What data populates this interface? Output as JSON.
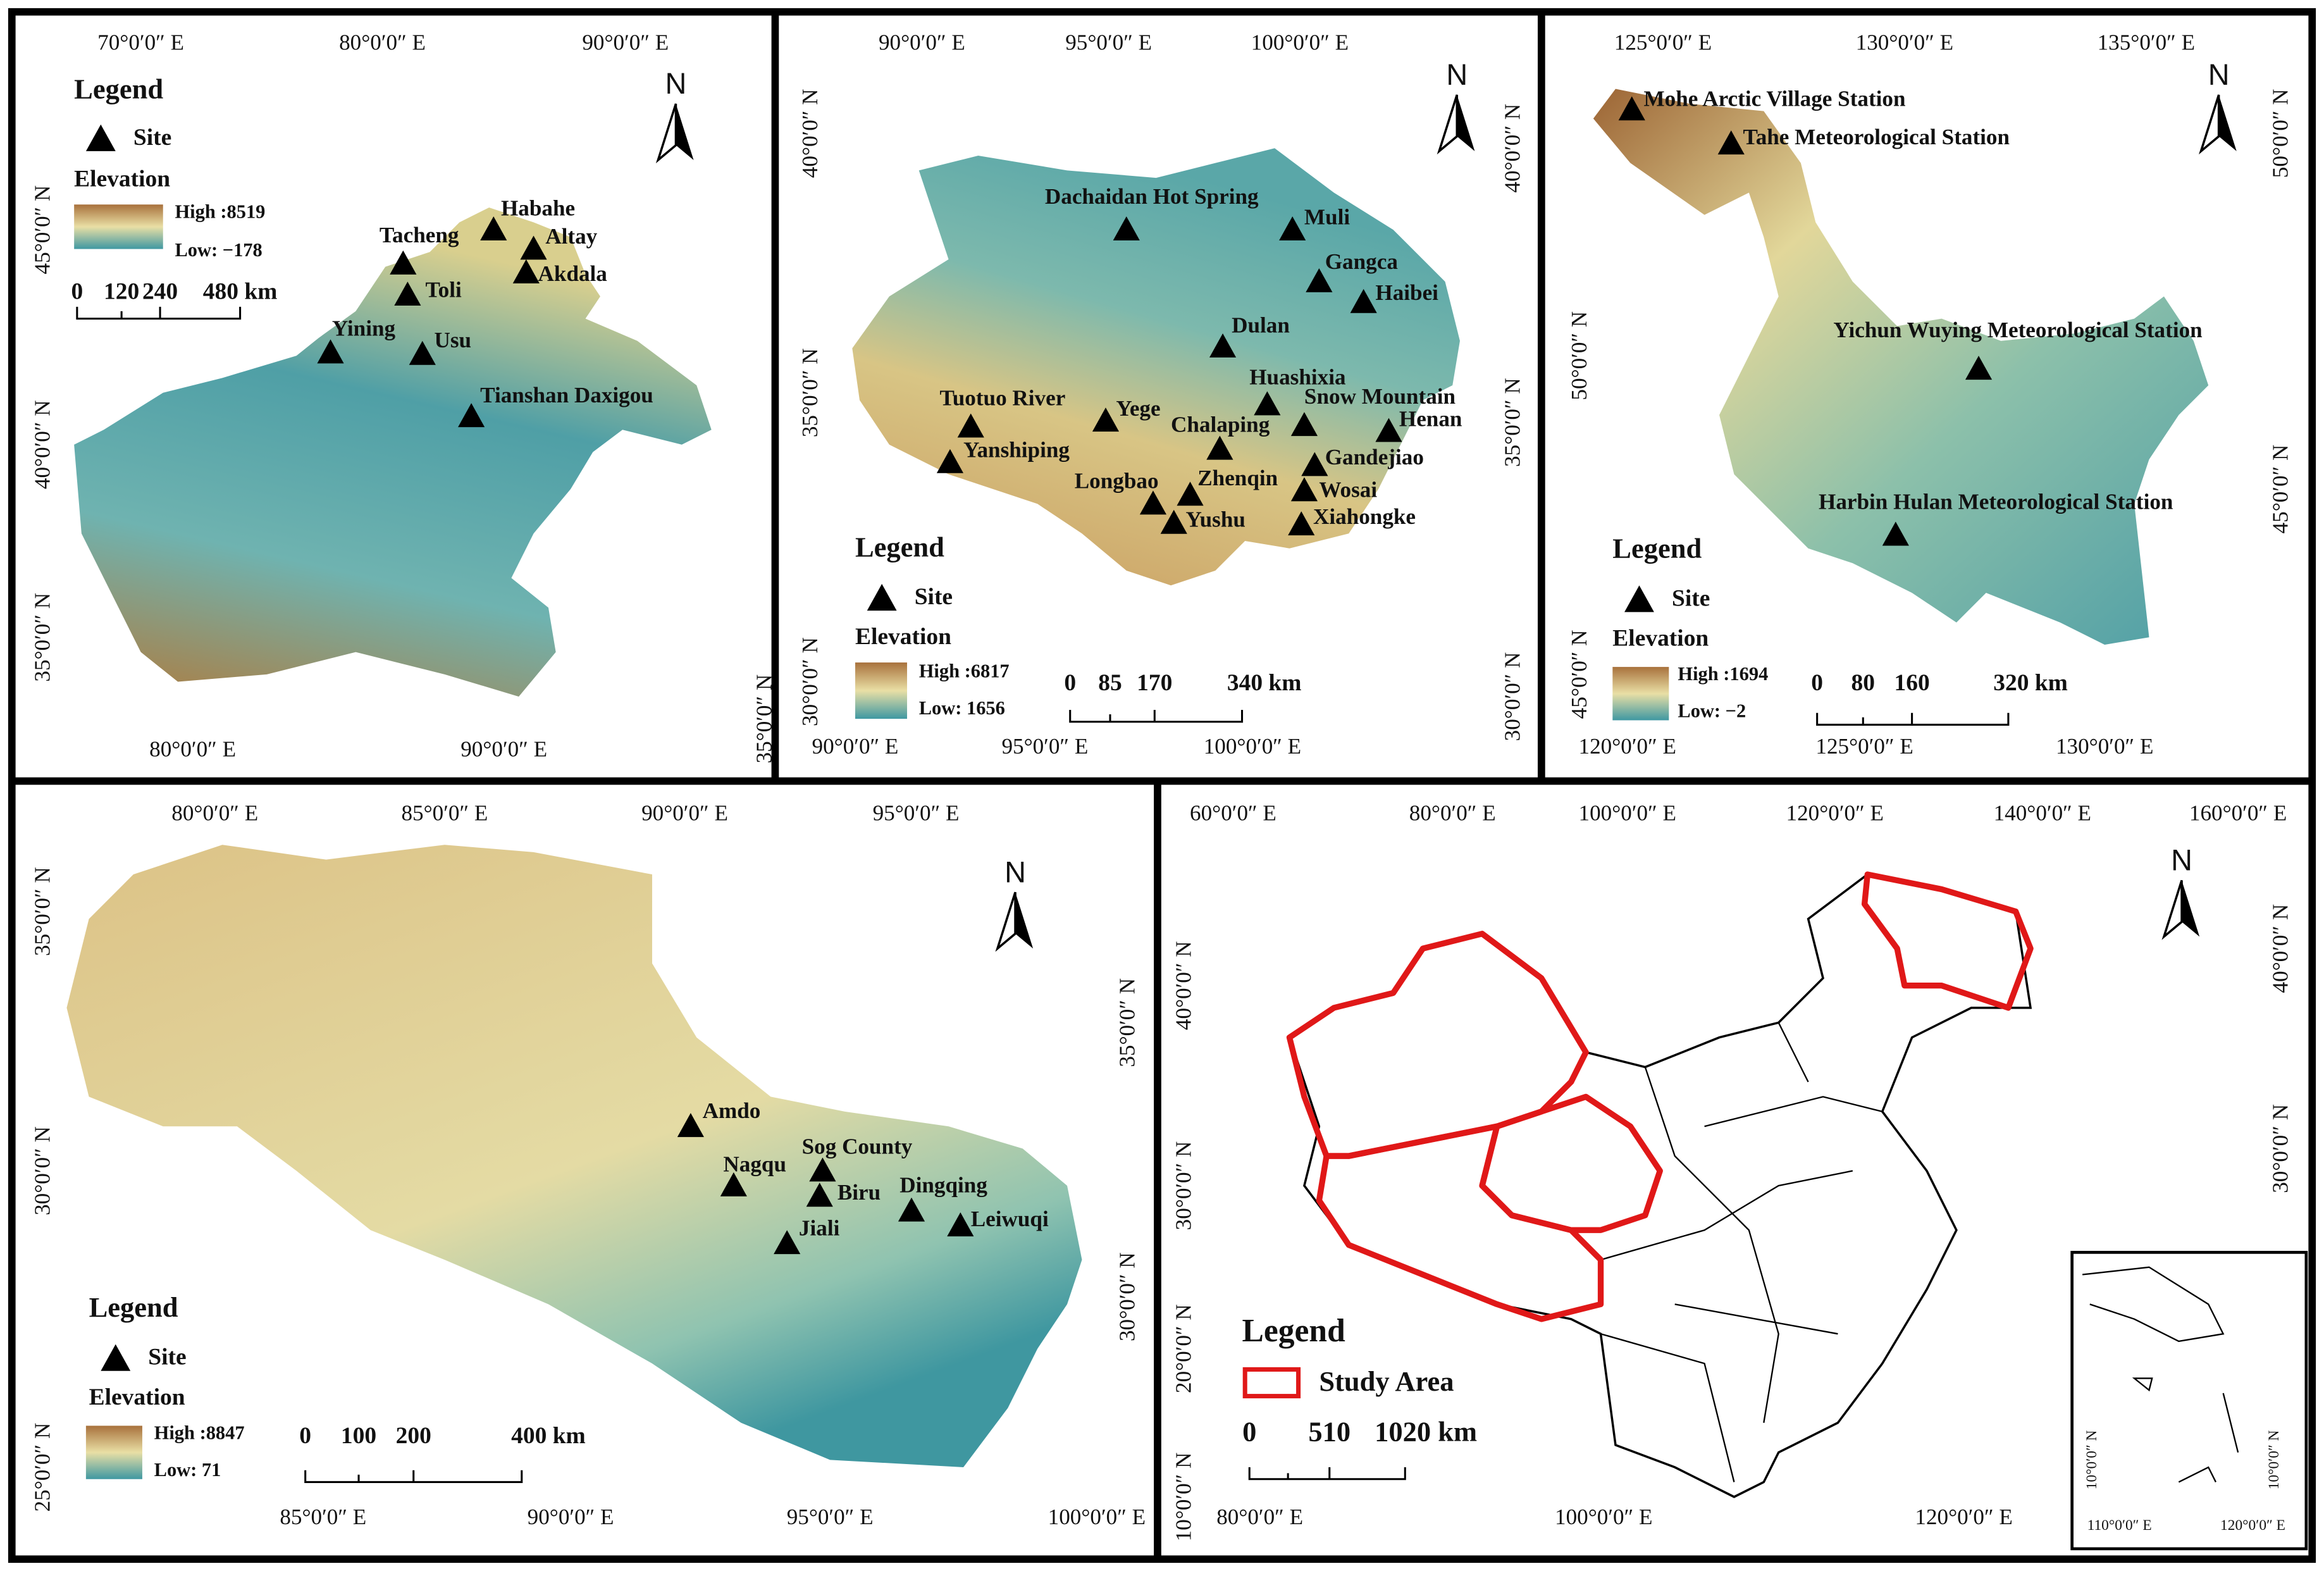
{
  "panels": [
    {
      "top_labels": [
        "70°0′0″ E",
        "80°0′0″ E",
        "90°0′0″ E"
      ],
      "bottom_labels": [
        "80°0′0″ E",
        "90°0′0″ E"
      ],
      "left_labels": [
        "45°0′0″ N",
        "40°0′0″ N",
        "35°0′0″ N"
      ],
      "right_labels": [
        "35°0′0″ N"
      ],
      "north": "N",
      "sites": [
        "Habahe",
        "Altay",
        "Akdala",
        "Tacheng",
        "Toli",
        "Yining",
        "Usu",
        "Tianshan Daxigou"
      ],
      "legend": {
        "title": "Legend",
        "site": "Site",
        "elevation": "Elevation",
        "high": "High :8519",
        "low": "Low: −178",
        "scale": [
          "0",
          "120",
          "240",
          "480 km"
        ]
      }
    },
    {
      "top_labels": [
        "90°0′0″ E",
        "95°0′0″ E",
        "100°0′0″ E"
      ],
      "bottom_labels": [
        "90°0′0″ E",
        "95°0′0″ E",
        "100°0′0″ E"
      ],
      "left_labels": [
        "40°0′0″ N",
        "35°0′0″ N",
        "30°0′0″ N"
      ],
      "right_labels": [
        "40°0′0″ N",
        "35°0′0″ N",
        "30°0′0″ N"
      ],
      "north": "N",
      "sites": [
        "Dachaidan Hot Spring",
        "Muli",
        "Gangca",
        "Haibei",
        "Dulan",
        "Huashixia",
        "Snow Mountain",
        "Henan",
        "Tuotuo River",
        "Yege",
        "Chalaping",
        "Yanshiping",
        "Gandejiao",
        "Zhenqin",
        "Longbao",
        "Wosai",
        "Yushu",
        "Xiahongke"
      ],
      "legend": {
        "title": "Legend",
        "site": "Site",
        "elevation": "Elevation",
        "high": "High :6817",
        "low": "Low: 1656",
        "scale": [
          "0",
          "85",
          "170",
          "340 km"
        ]
      }
    },
    {
      "top_labels": [
        "125°0′0″ E",
        "130°0′0″ E",
        "135°0′0″ E"
      ],
      "bottom_labels": [
        "120°0′0″ E",
        "125°0′0″ E",
        "130°0′0″ E"
      ],
      "left_labels": [
        "50°0′0″ N",
        "45°0′0″ N"
      ],
      "right_labels": [
        "50°0′0″ N",
        "45°0′0″ N"
      ],
      "north": "N",
      "sites": [
        "Mohe Arctic Village Station",
        "Tahe Meteorological Station",
        "Yichun Wuying Meteorological Station",
        "Harbin Hulan Meteorological Station"
      ],
      "legend": {
        "title": "Legend",
        "site": "Site",
        "elevation": "Elevation",
        "high": "High :1694",
        "low": "Low: −2",
        "scale": [
          "0",
          "80",
          "160",
          "320 km"
        ]
      }
    },
    {
      "top_labels": [
        "80°0′0″ E",
        "85°0′0″ E",
        "90°0′0″ E",
        "95°0′0″ E"
      ],
      "bottom_labels": [
        "85°0′0″ E",
        "90°0′0″ E",
        "95°0′0″ E",
        "100°0′0″ E"
      ],
      "left_labels": [
        "35°0′0″ N",
        "30°0′0″ N",
        "25°0′0″ N"
      ],
      "right_labels": [
        "35°0′0″ N",
        "30°0′0″ N"
      ],
      "north": "N",
      "sites": [
        "Amdo",
        "Nagqu",
        "Sog County",
        "Biru",
        "Dingqing",
        "Leiwuqi",
        "Jiali"
      ],
      "legend": {
        "title": "Legend",
        "site": "Site",
        "elevation": "Elevation",
        "high": "High :8847",
        "low": "Low: 71",
        "scale": [
          "0",
          "100",
          "200",
          "400 km"
        ]
      }
    },
    {
      "top_labels": [
        "60°0′0″ E",
        "80°0′0″ E",
        "100°0′0″ E",
        "120°0′0″ E",
        "140°0′0″ E",
        "160°0′0″ E"
      ],
      "bottom_labels": [
        "80°0′0″ E",
        "100°0′0″ E",
        "120°0′0″ E"
      ],
      "left_labels": [
        "40°0′0″ N",
        "30°0′0″ N",
        "20°0′0″ N",
        "10°0′0″ N"
      ],
      "right_labels": [
        "40°0′0″ N",
        "30°0′0″ N"
      ],
      "north": "N",
      "sites": [],
      "legend": {
        "title": "Legend",
        "study_area": "Study Area",
        "scale": [
          "0",
          "510",
          "1020 km"
        ]
      },
      "inset_labels": [
        "10°0′0″ N",
        "10°0′0″ N",
        "110°0′0″ E",
        "120°0′0″ E"
      ]
    }
  ]
}
